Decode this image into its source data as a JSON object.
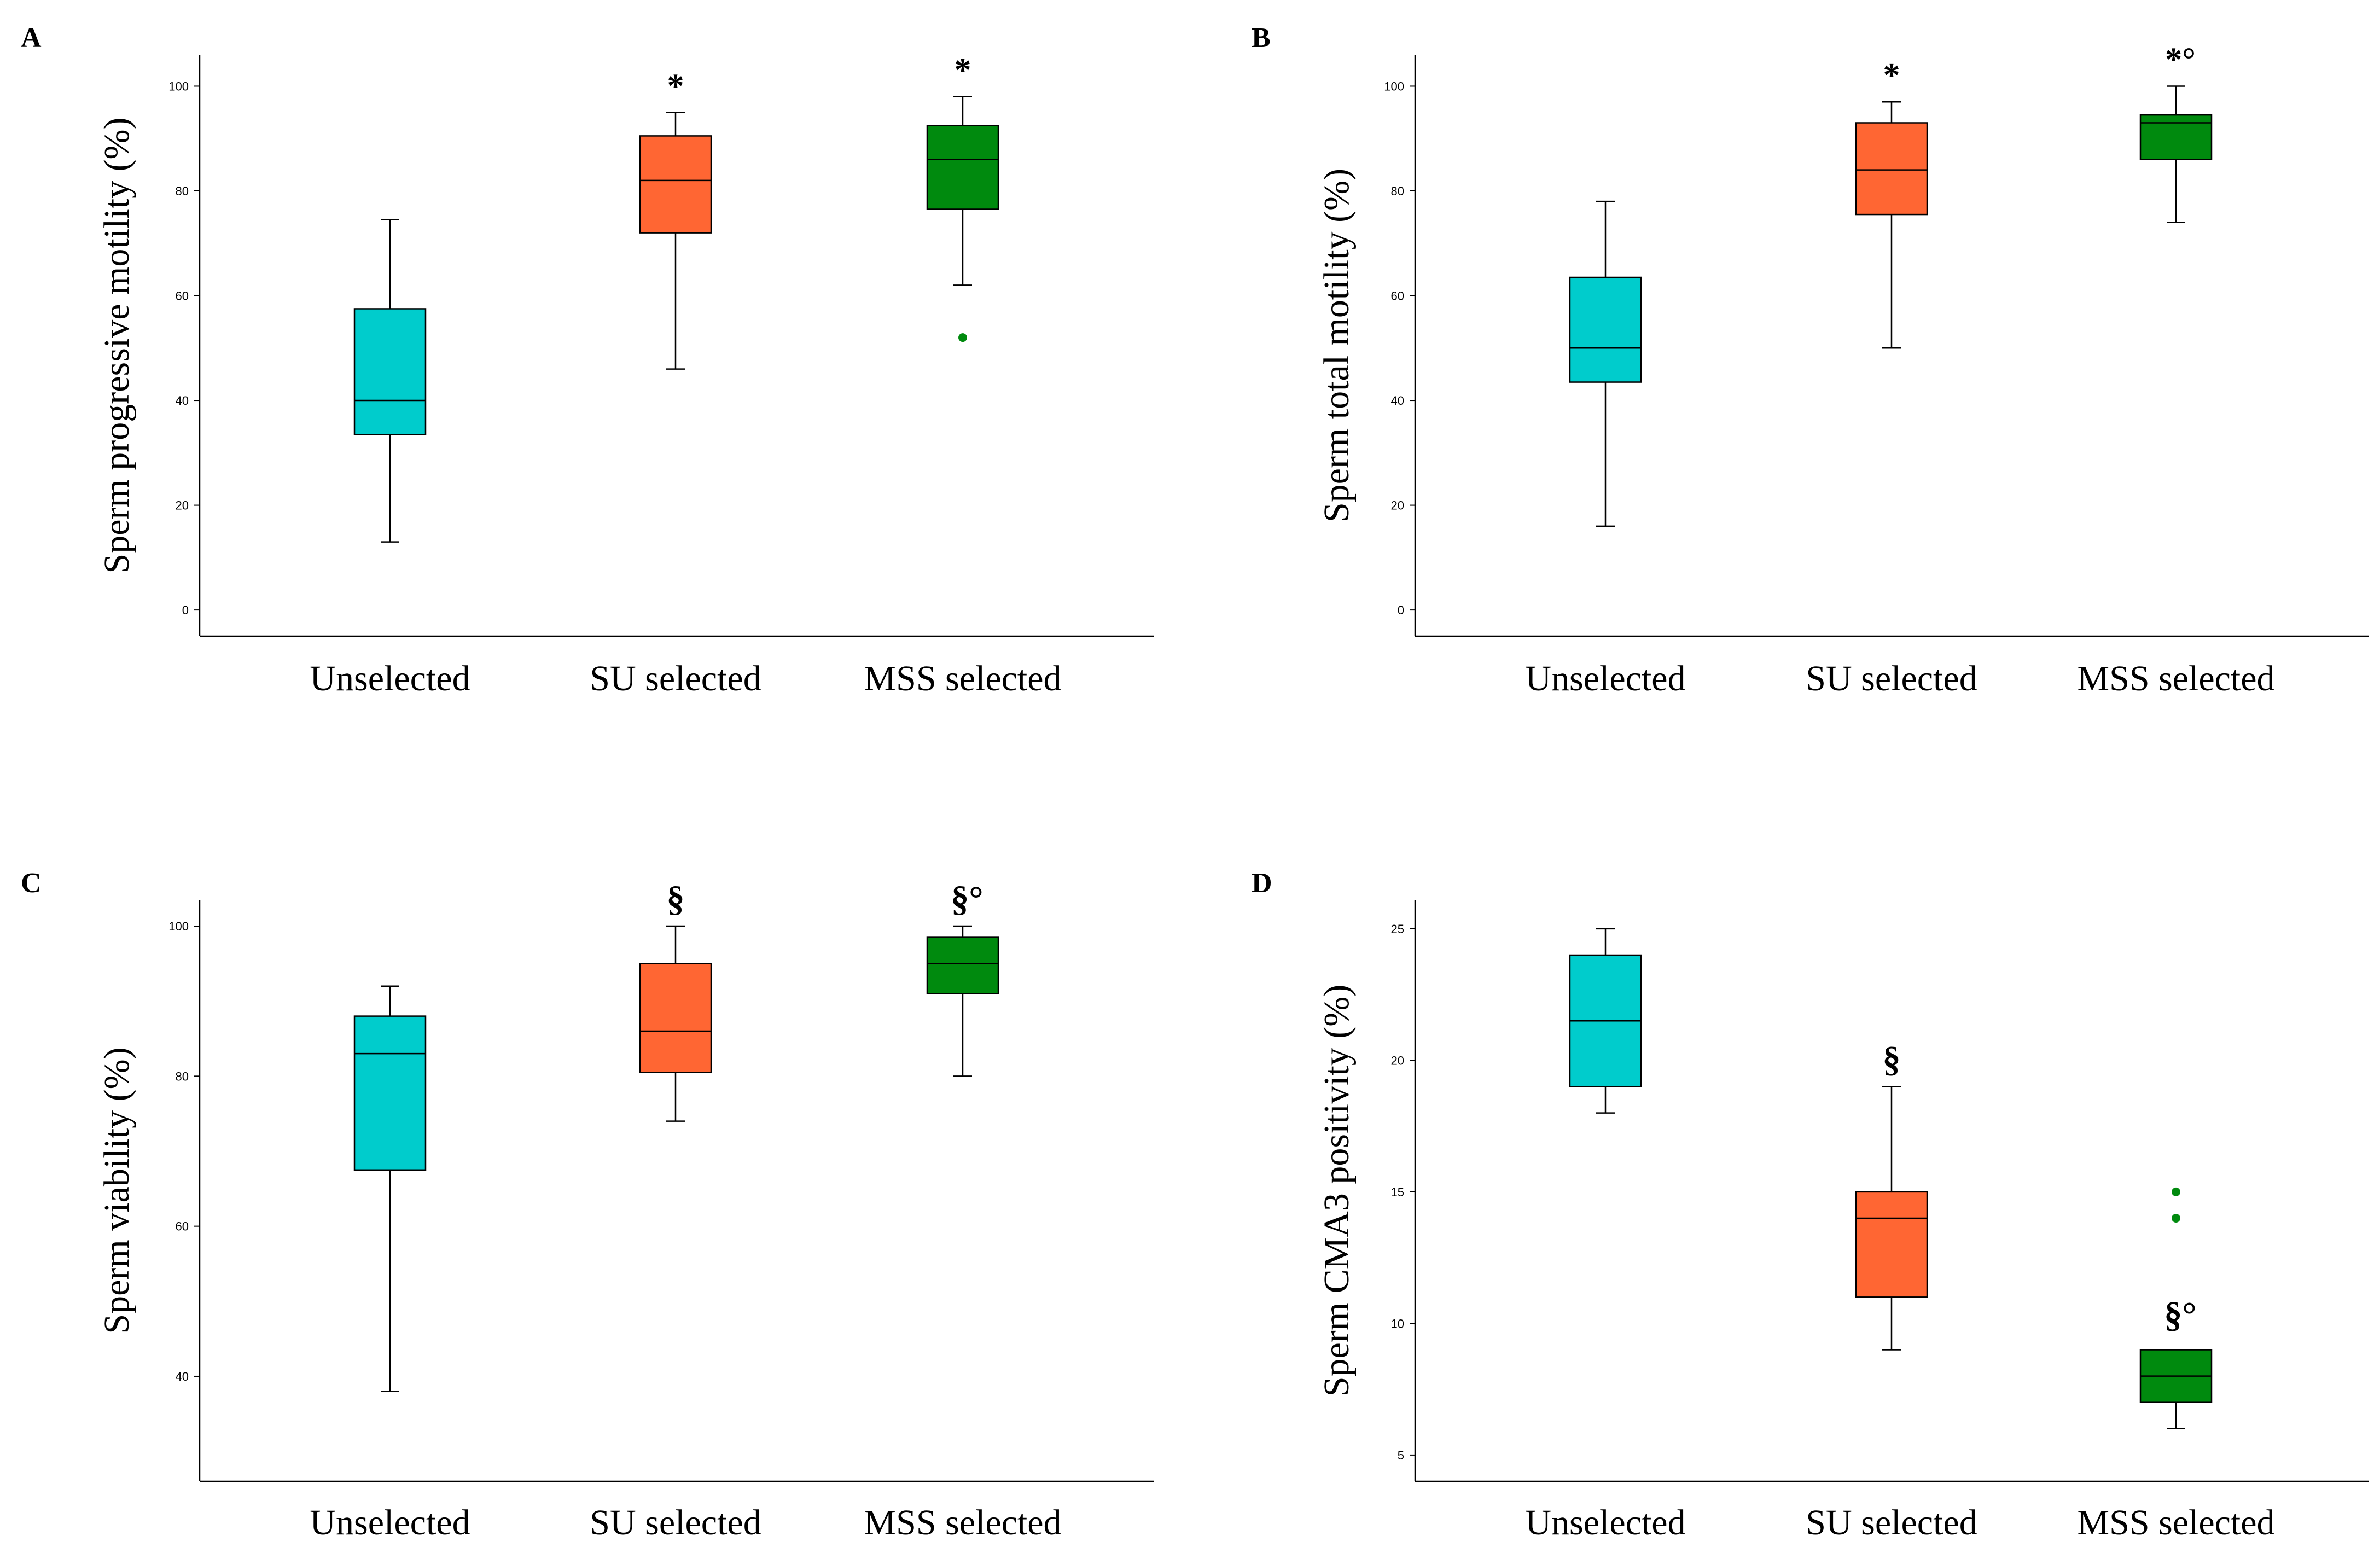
{
  "colors": {
    "unselected": "#00CCCC",
    "su": "#FF6633",
    "mss": "#008A0E",
    "outlier": "#008A0E",
    "line": "#000000"
  },
  "chart_data": [
    {
      "panel": "A",
      "type": "box",
      "ylabel": "Sperm progressive motility (%)",
      "categories": [
        "Unselected",
        "SU selected",
        "MSS selected"
      ],
      "ylim": [
        -5,
        106
      ],
      "yticks": [
        0,
        20,
        40,
        60,
        80,
        100
      ],
      "boxes": [
        {
          "min": 13,
          "q1": 33.5,
          "median": 40,
          "q3": 57.5,
          "max": 74.5,
          "outliers": [],
          "sig": ""
        },
        {
          "min": 46,
          "q1": 72,
          "median": 82,
          "q3": 90.5,
          "max": 95,
          "outliers": [],
          "sig": "*"
        },
        {
          "min": 62,
          "q1": 76.5,
          "median": 86,
          "q3": 92.5,
          "max": 98,
          "outliers": [
            52
          ],
          "sig": "*"
        }
      ]
    },
    {
      "panel": "B",
      "type": "box",
      "ylabel": "Sperm total motility (%)",
      "categories": [
        "Unselected",
        "SU selected",
        "MSS selected"
      ],
      "ylim": [
        -5,
        106
      ],
      "yticks": [
        0,
        20,
        40,
        60,
        80,
        100
      ],
      "boxes": [
        {
          "min": 16,
          "q1": 43.5,
          "median": 50,
          "q3": 63.5,
          "max": 78,
          "outliers": [],
          "sig": ""
        },
        {
          "min": 50,
          "q1": 75.5,
          "median": 84,
          "q3": 93,
          "max": 97,
          "outliers": [],
          "sig": "*"
        },
        {
          "min": 74,
          "q1": 86,
          "median": 93,
          "q3": 94.5,
          "max": 100,
          "outliers": [],
          "sig": "*°"
        }
      ]
    },
    {
      "panel": "C",
      "type": "box",
      "ylabel": "Sperm viability (%)",
      "categories": [
        "Unselected",
        "SU selected",
        "MSS selected"
      ],
      "ylim": [
        26,
        103.5
      ],
      "yticks": [
        40,
        60,
        80,
        100
      ],
      "boxes": [
        {
          "min": 38,
          "q1": 67.5,
          "median": 83,
          "q3": 88,
          "max": 92,
          "outliers": [],
          "sig": ""
        },
        {
          "min": 74,
          "q1": 80.5,
          "median": 86,
          "q3": 95,
          "max": 100,
          "outliers": [],
          "sig": "§"
        },
        {
          "min": 80,
          "q1": 91,
          "median": 95,
          "q3": 98.5,
          "max": 100,
          "outliers": [],
          "sig": "§°"
        }
      ]
    },
    {
      "panel": "D",
      "type": "box",
      "ylabel": "Sperm CMA3 positivity (%)",
      "categories": [
        "Unselected",
        "SU selected",
        "MSS selected"
      ],
      "ylim": [
        4,
        26.1
      ],
      "yticks": [
        5,
        10,
        15,
        20,
        25
      ],
      "boxes": [
        {
          "min": 18,
          "q1": 19,
          "median": 21.5,
          "q3": 24,
          "max": 25,
          "outliers": [],
          "sig": ""
        },
        {
          "min": 9,
          "q1": 11,
          "median": 14,
          "q3": 15,
          "max": 19,
          "outliers": [],
          "sig": "§"
        },
        {
          "min": 6,
          "q1": 7,
          "median": 8,
          "q3": 9,
          "max": 9,
          "outliers": [
            14,
            15
          ],
          "sig": "§°"
        }
      ]
    }
  ]
}
